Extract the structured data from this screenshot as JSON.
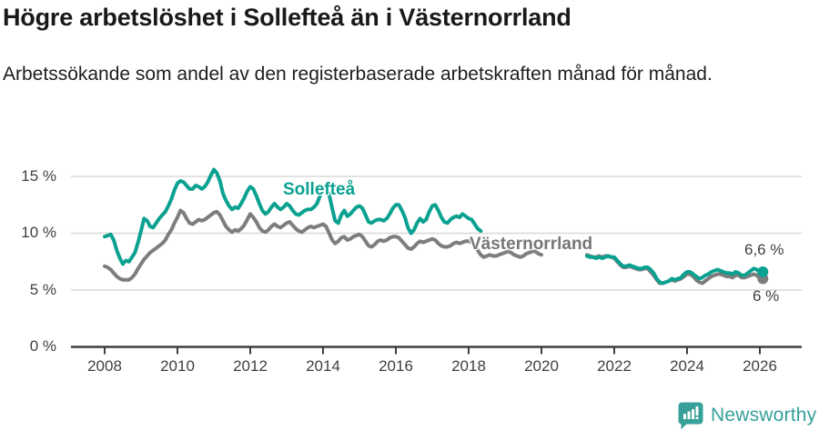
{
  "header": {
    "title": "Högre arbetslöshet i Sollefteå än i Västernorrland",
    "subtitle": "Arbetssökande som andel av den registerbaserade arbetskraften månad för månad."
  },
  "footer": {
    "logo_text": "Newsworthy",
    "logo_color": "#37a099"
  },
  "chart_data": {
    "type": "line",
    "title": "Högre arbetslöshet i Sollefteå än i Västernorrland",
    "subtitle": "Arbetssökande som andel av den registerbaserade arbetskraften månad för månad.",
    "unit": "%",
    "xlabel": "",
    "ylabel": "",
    "ylim": [
      0,
      16.5
    ],
    "x_range": [
      2007.1,
      2027.2
    ],
    "grid": "horizontal",
    "legend_position": "inline-labels",
    "colors": {
      "grid": "#d8d8d8",
      "axis": "#3f3f3e",
      "tick_text": "#3f3f3e"
    },
    "yticks": [
      {
        "value": 15,
        "label": "15 %"
      },
      {
        "value": 10,
        "label": "10 %"
      },
      {
        "value": 5,
        "label": "5 %"
      },
      {
        "value": 0,
        "label": "0 %"
      }
    ],
    "xticks": [
      {
        "value": 2008,
        "label": "2008"
      },
      {
        "value": 2010,
        "label": "2010"
      },
      {
        "value": 2012,
        "label": "2012"
      },
      {
        "value": 2014,
        "label": "2014"
      },
      {
        "value": 2016,
        "label": "2016"
      },
      {
        "value": 2018,
        "label": "2018"
      },
      {
        "value": 2020,
        "label": "2020"
      },
      {
        "value": 2022,
        "label": "2022"
      },
      {
        "value": 2024,
        "label": "2024"
      },
      {
        "value": 2026,
        "label": "2026"
      }
    ],
    "series": [
      {
        "id": "solleftea",
        "name": "Sollefteå",
        "color": "#0aa190",
        "end_label": "6,6 %",
        "end_value": 6.6,
        "segments": [
          {
            "start": 2008.0,
            "step_months": 1,
            "values": [
              9.7,
              9.8,
              9.9,
              9.4,
              8.5,
              7.8,
              7.3,
              7.6,
              7.5,
              7.9,
              8.3,
              9.2,
              10.2,
              11.3,
              11.1,
              10.6,
              10.5,
              10.9,
              11.3,
              11.6,
              11.9,
              12.4,
              13.0,
              13.8,
              14.4,
              14.6,
              14.5,
              14.2,
              13.9,
              13.9,
              14.2,
              14.1,
              13.9,
              14.1,
              14.5,
              15.1,
              15.6,
              15.3,
              14.6,
              13.5,
              12.9,
              12.4,
              12.1,
              12.3,
              12.2,
              12.6,
              13.1,
              13.7,
              14.1,
              13.9,
              13.3,
              12.6,
              12.0,
              11.7,
              11.9,
              12.3,
              12.6,
              12.3,
              12.1,
              12.3,
              12.6,
              12.4,
              12.0,
              11.7,
              11.6,
              11.8,
              12.0,
              12.1,
              12.1,
              12.3,
              12.6,
              13.3,
              13.9,
              14.0,
              13.4,
              12.2,
              11.1,
              10.9,
              11.6,
              12.0,
              11.5,
              11.7,
              12.0,
              12.3,
              12.4,
              12.2,
              11.6,
              11.0,
              10.9,
              11.1,
              11.2,
              11.2,
              11.1,
              11.3,
              11.7,
              12.2,
              12.5,
              12.5,
              12.0,
              11.4,
              10.5,
              10.0,
              10.3,
              10.9,
              11.3,
              11.0,
              11.2,
              11.9,
              12.4,
              12.5,
              12.0,
              11.4,
              11.0,
              10.9,
              11.2,
              11.4,
              11.5,
              11.4,
              11.7,
              11.5,
              11.3,
              11.2,
              10.8,
              10.4,
              10.2
            ]
          },
          {
            "start": 2021.25,
            "step_months": 1,
            "values": [
              8.0,
              7.9,
              7.9,
              7.8,
              7.9,
              7.8,
              7.9,
              8.0,
              7.9,
              7.9,
              7.6,
              7.3,
              7.1,
              7.1,
              7.2,
              7.1,
              7.0,
              6.9,
              6.9,
              7.0,
              7.0,
              6.8,
              6.5,
              6.0,
              5.7,
              5.6,
              5.7,
              5.8,
              6.0,
              5.9,
              6.0,
              6.1,
              6.4,
              6.6,
              6.6,
              6.4,
              6.2,
              6.0,
              6.1,
              6.3,
              6.4,
              6.6,
              6.7,
              6.8,
              6.7,
              6.6,
              6.5,
              6.5,
              6.4,
              6.6,
              6.5,
              6.3,
              6.3,
              6.5,
              6.7,
              6.9,
              6.8,
              6.5,
              6.6
            ]
          }
        ]
      },
      {
        "id": "vasternorrland",
        "name": "Västernorrland",
        "color": "#7d7d7d",
        "end_label": "6 %",
        "end_value": 6.0,
        "segments": [
          {
            "start": 2008.0,
            "step_months": 1,
            "values": [
              7.1,
              7.0,
              6.8,
              6.5,
              6.2,
              6.0,
              5.9,
              5.9,
              5.9,
              6.1,
              6.4,
              6.9,
              7.3,
              7.7,
              8.0,
              8.3,
              8.5,
              8.7,
              8.9,
              9.1,
              9.4,
              9.9,
              10.3,
              10.9,
              11.4,
              12.0,
              11.8,
              11.3,
              10.9,
              10.8,
              11.0,
              11.2,
              11.1,
              11.2,
              11.4,
              11.6,
              11.8,
              11.9,
              11.6,
              11.1,
              10.6,
              10.3,
              10.1,
              10.3,
              10.2,
              10.4,
              10.7,
              11.2,
              11.7,
              11.4,
              11.0,
              10.5,
              10.2,
              10.1,
              10.3,
              10.6,
              10.8,
              10.6,
              10.5,
              10.7,
              10.9,
              11.0,
              10.7,
              10.4,
              10.2,
              10.1,
              10.3,
              10.5,
              10.6,
              10.5,
              10.6,
              10.7,
              10.8,
              10.6,
              10.0,
              9.4,
              9.1,
              9.3,
              9.6,
              9.7,
              9.4,
              9.5,
              9.7,
              9.8,
              9.9,
              9.7,
              9.3,
              8.9,
              8.8,
              9.0,
              9.3,
              9.4,
              9.3,
              9.4,
              9.6,
              9.7,
              9.7,
              9.6,
              9.3,
              9.0,
              8.7,
              8.6,
              8.8,
              9.1,
              9.3,
              9.2,
              9.3,
              9.4,
              9.5,
              9.4,
              9.1,
              8.9,
              8.8,
              8.8,
              8.9,
              9.1,
              9.2,
              9.1,
              9.2,
              9.3,
              9.3,
              9.2,
              8.9,
              8.5,
              8.1,
              7.9,
              8.0,
              8.1,
              8.0,
              8.0,
              8.1,
              8.2,
              8.3,
              8.4,
              8.3,
              8.1,
              8.0,
              7.9,
              8.0,
              8.2,
              8.3,
              8.4,
              8.4,
              8.2,
              8.1
            ]
          },
          {
            "start": 2021.25,
            "step_months": 1,
            "values": [
              8.1,
              8.0,
              7.9,
              7.9,
              8.0,
              7.9,
              8.0,
              8.0,
              7.9,
              7.8,
              7.5,
              7.2,
              7.0,
              7.0,
              7.1,
              7.0,
              6.9,
              6.8,
              6.8,
              6.9,
              6.9,
              6.6,
              6.3,
              5.9,
              5.6,
              5.6,
              5.7,
              5.8,
              5.9,
              5.8,
              5.9,
              6.0,
              6.2,
              6.4,
              6.4,
              6.2,
              5.9,
              5.7,
              5.6,
              5.8,
              6.0,
              6.2,
              6.3,
              6.4,
              6.4,
              6.3,
              6.2,
              6.2,
              6.1,
              6.3,
              6.3,
              6.1,
              6.1,
              6.2,
              6.3,
              6.4,
              6.3,
              6.0,
              6.0
            ]
          }
        ]
      }
    ]
  }
}
